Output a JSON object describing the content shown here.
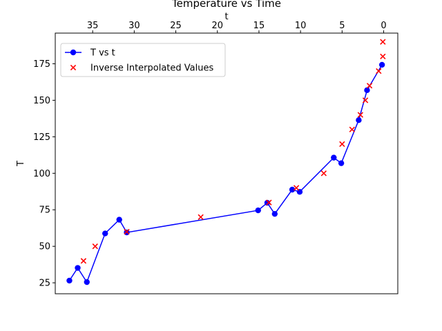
{
  "chart_data": {
    "type": "line",
    "title": "Temperature vs Time",
    "xlabel": "t",
    "ylabel": "T",
    "xlim": [
      39.5,
      -1.7
    ],
    "ylim": [
      17.5,
      196
    ],
    "x_axis_position": "top",
    "x_inverted": true,
    "grid": false,
    "legend_position": "top-left",
    "xticks": [
      35,
      30,
      25,
      20,
      15,
      10,
      5,
      0
    ],
    "yticks": [
      25,
      50,
      75,
      100,
      125,
      150,
      175
    ],
    "series": [
      {
        "name": "T vs t",
        "kind": "line-marker",
        "color": "#0000ff",
        "points": [
          [
            37.8,
            26.5
          ],
          [
            36.8,
            35.2
          ],
          [
            35.7,
            25.5
          ],
          [
            33.5,
            58.8
          ],
          [
            31.8,
            68.2
          ],
          [
            30.9,
            59.5
          ],
          [
            15.1,
            74.6
          ],
          [
            14.0,
            79.8
          ],
          [
            13.1,
            72.2
          ],
          [
            11.0,
            88.8
          ],
          [
            10.1,
            87.3
          ],
          [
            6.0,
            110.7
          ],
          [
            5.1,
            106.9
          ],
          [
            3.0,
            136.4
          ],
          [
            2.0,
            156.9
          ],
          [
            0.2,
            174.3
          ]
        ]
      },
      {
        "name": "Inverse Interpolated Values",
        "kind": "scatter-x",
        "color": "#ff0000",
        "points": [
          [
            36.1,
            40
          ],
          [
            34.7,
            50
          ],
          [
            30.9,
            60
          ],
          [
            22.0,
            70
          ],
          [
            13.8,
            80
          ],
          [
            10.5,
            90
          ],
          [
            7.2,
            100
          ],
          [
            5.0,
            120
          ],
          [
            3.8,
            130
          ],
          [
            2.8,
            140
          ],
          [
            2.2,
            150
          ],
          [
            1.7,
            160
          ],
          [
            0.6,
            170
          ],
          [
            0.1,
            180
          ],
          [
            0.1,
            190
          ]
        ]
      }
    ]
  }
}
